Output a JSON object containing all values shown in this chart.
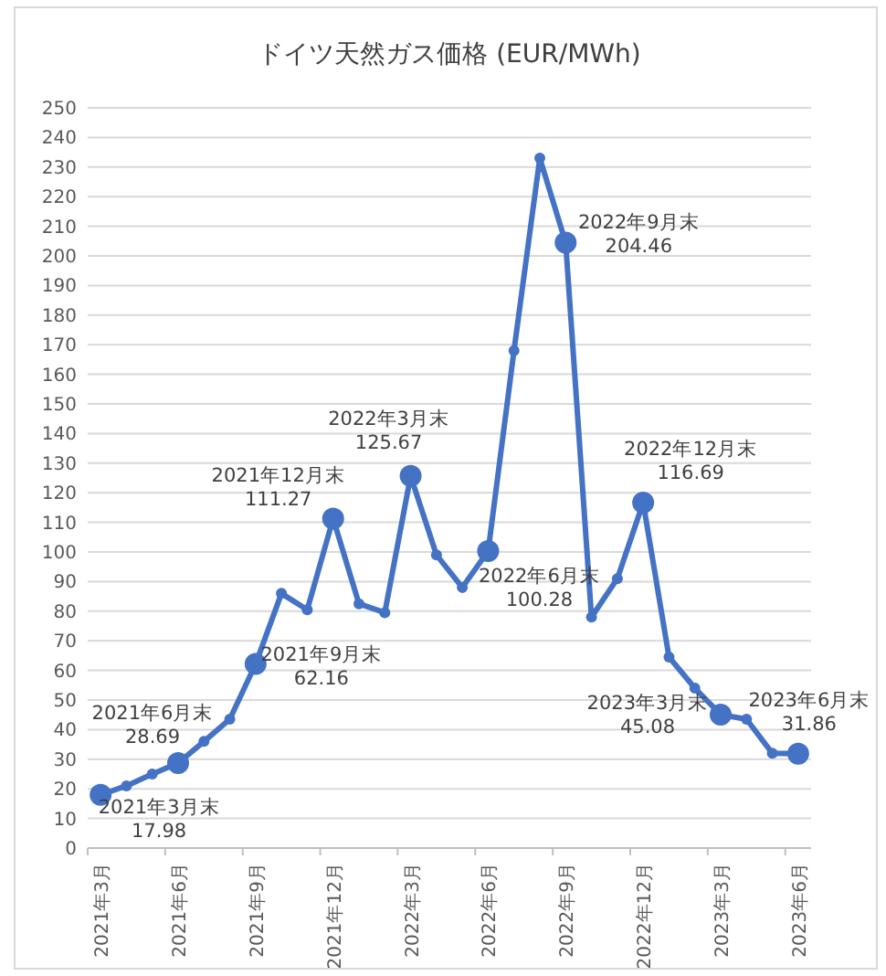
{
  "chart_data": {
    "type": "line",
    "title": "ドイツ天然ガス価格 (EUR/MWh)",
    "categories": [
      "2021年3月",
      null,
      null,
      "2021年6月",
      null,
      null,
      "2021年9月",
      null,
      null,
      "2021年12月",
      null,
      null,
      "2022年3月",
      null,
      null,
      "2022年6月",
      null,
      null,
      "2022年9月",
      null,
      null,
      "2022年12月",
      null,
      null,
      "2023年3月",
      null,
      null,
      "2023年6月"
    ],
    "values": [
      17.98,
      21,
      25,
      28.69,
      36,
      43.5,
      62.16,
      86,
      80.5,
      111.27,
      82.5,
      79.5,
      125.67,
      99,
      88,
      100.28,
      168,
      233,
      204.46,
      78,
      91,
      116.69,
      64.5,
      54,
      45.08,
      43.5,
      32,
      31.86
    ],
    "value_labels": [
      "17.98",
      null,
      null,
      "28.69",
      null,
      null,
      "62.16",
      null,
      null,
      "111.27",
      null,
      null,
      "125.67",
      null,
      null,
      "100.28",
      null,
      null,
      "204.46",
      null,
      null,
      "116.69",
      null,
      null,
      "45.08",
      null,
      null,
      "31.86"
    ],
    "annotations": [
      {
        "text": "2021年3月末",
        "x": "2021年3月",
        "y": 17.98
      },
      {
        "text": "2021年6月末",
        "x": "2021年6月",
        "y": 28.69
      },
      {
        "text": "2021年9月末",
        "x": "2021年9月",
        "y": 62.16
      },
      {
        "text": "2021年12月末",
        "x": "2021年12月",
        "y": 111.27
      },
      {
        "text": "2022年3月末",
        "x": "2022年3月",
        "y": 125.67
      },
      {
        "text": "2022年6月末",
        "x": "2022年6月",
        "y": 100.28
      },
      {
        "text": "2022年9月末",
        "x": "2022年9月",
        "y": 204.46
      },
      {
        "text": "2022年12月末",
        "x": "2022年12月",
        "y": 116.69
      },
      {
        "text": "2023年3月末",
        "x": "2023年3月",
        "y": 45.08
      },
      {
        "text": "2023年6月末",
        "x": "2023年6月",
        "y": 31.86
      }
    ],
    "color": "#4472c4",
    "ylim": [
      0,
      250
    ],
    "yticks": [
      0,
      10,
      20,
      30,
      40,
      50,
      60,
      70,
      80,
      90,
      100,
      110,
      120,
      130,
      140,
      150,
      160,
      170,
      180,
      190,
      200,
      210,
      220,
      230,
      240,
      250
    ],
    "grid": "y",
    "marker": "circle",
    "line_style": "solid"
  }
}
